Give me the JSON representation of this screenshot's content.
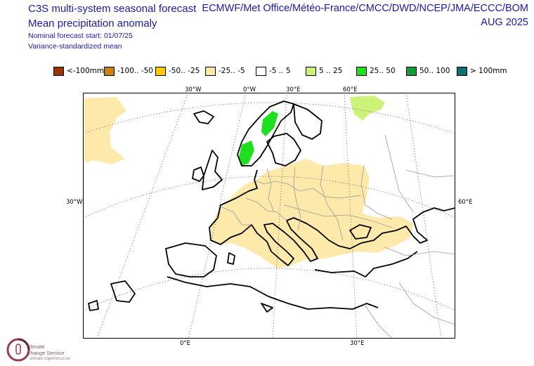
{
  "header": {
    "title_main": "C3S multi-system seasonal forecast",
    "title_sub": "Mean precipitation anomaly",
    "start": "Nominal forecast start: 01/07/25",
    "variance": "Variance-standardized mean",
    "centres": "ECMWF/Met Office/Météo-France/CMCC/DWD/NCEP/JMA/ECCC/BOM",
    "month": "AUG 2025"
  },
  "legend": [
    {
      "label": "<-100mm",
      "color": "#993300"
    },
    {
      "label": "-100.. -50",
      "color": "#cc8010"
    },
    {
      "label": "-50.. -25",
      "color": "#ffcc00"
    },
    {
      "label": "-25.. -5",
      "color": "#fde9aa"
    },
    {
      "label": "-5 .. 5",
      "color": "#ffffff"
    },
    {
      "label": "5 .. 25",
      "color": "#ccf27a"
    },
    {
      "label": "25.. 50",
      "color": "#1fe01f"
    },
    {
      "label": "50.. 100",
      "color": "#129c3a"
    },
    {
      "label": "> 100mm",
      "color": "#0e6e70"
    }
  ],
  "axis_labels": {
    "top": [
      "30°W",
      "0°W",
      "30°E",
      "60°E"
    ],
    "left": "30°W",
    "right": "60°E",
    "bottom": [
      "0°E",
      "30°E"
    ]
  },
  "colors": {
    "text_blue": "#1a1aa8",
    "dry_light": "#fde9aa",
    "wet_light": "#ccf27a",
    "wet_medium": "#1fe01f"
  },
  "logo": {
    "name_line1": "Climate",
    "name_line2": "Change Service",
    "url": "climate.copernicus.eu"
  }
}
